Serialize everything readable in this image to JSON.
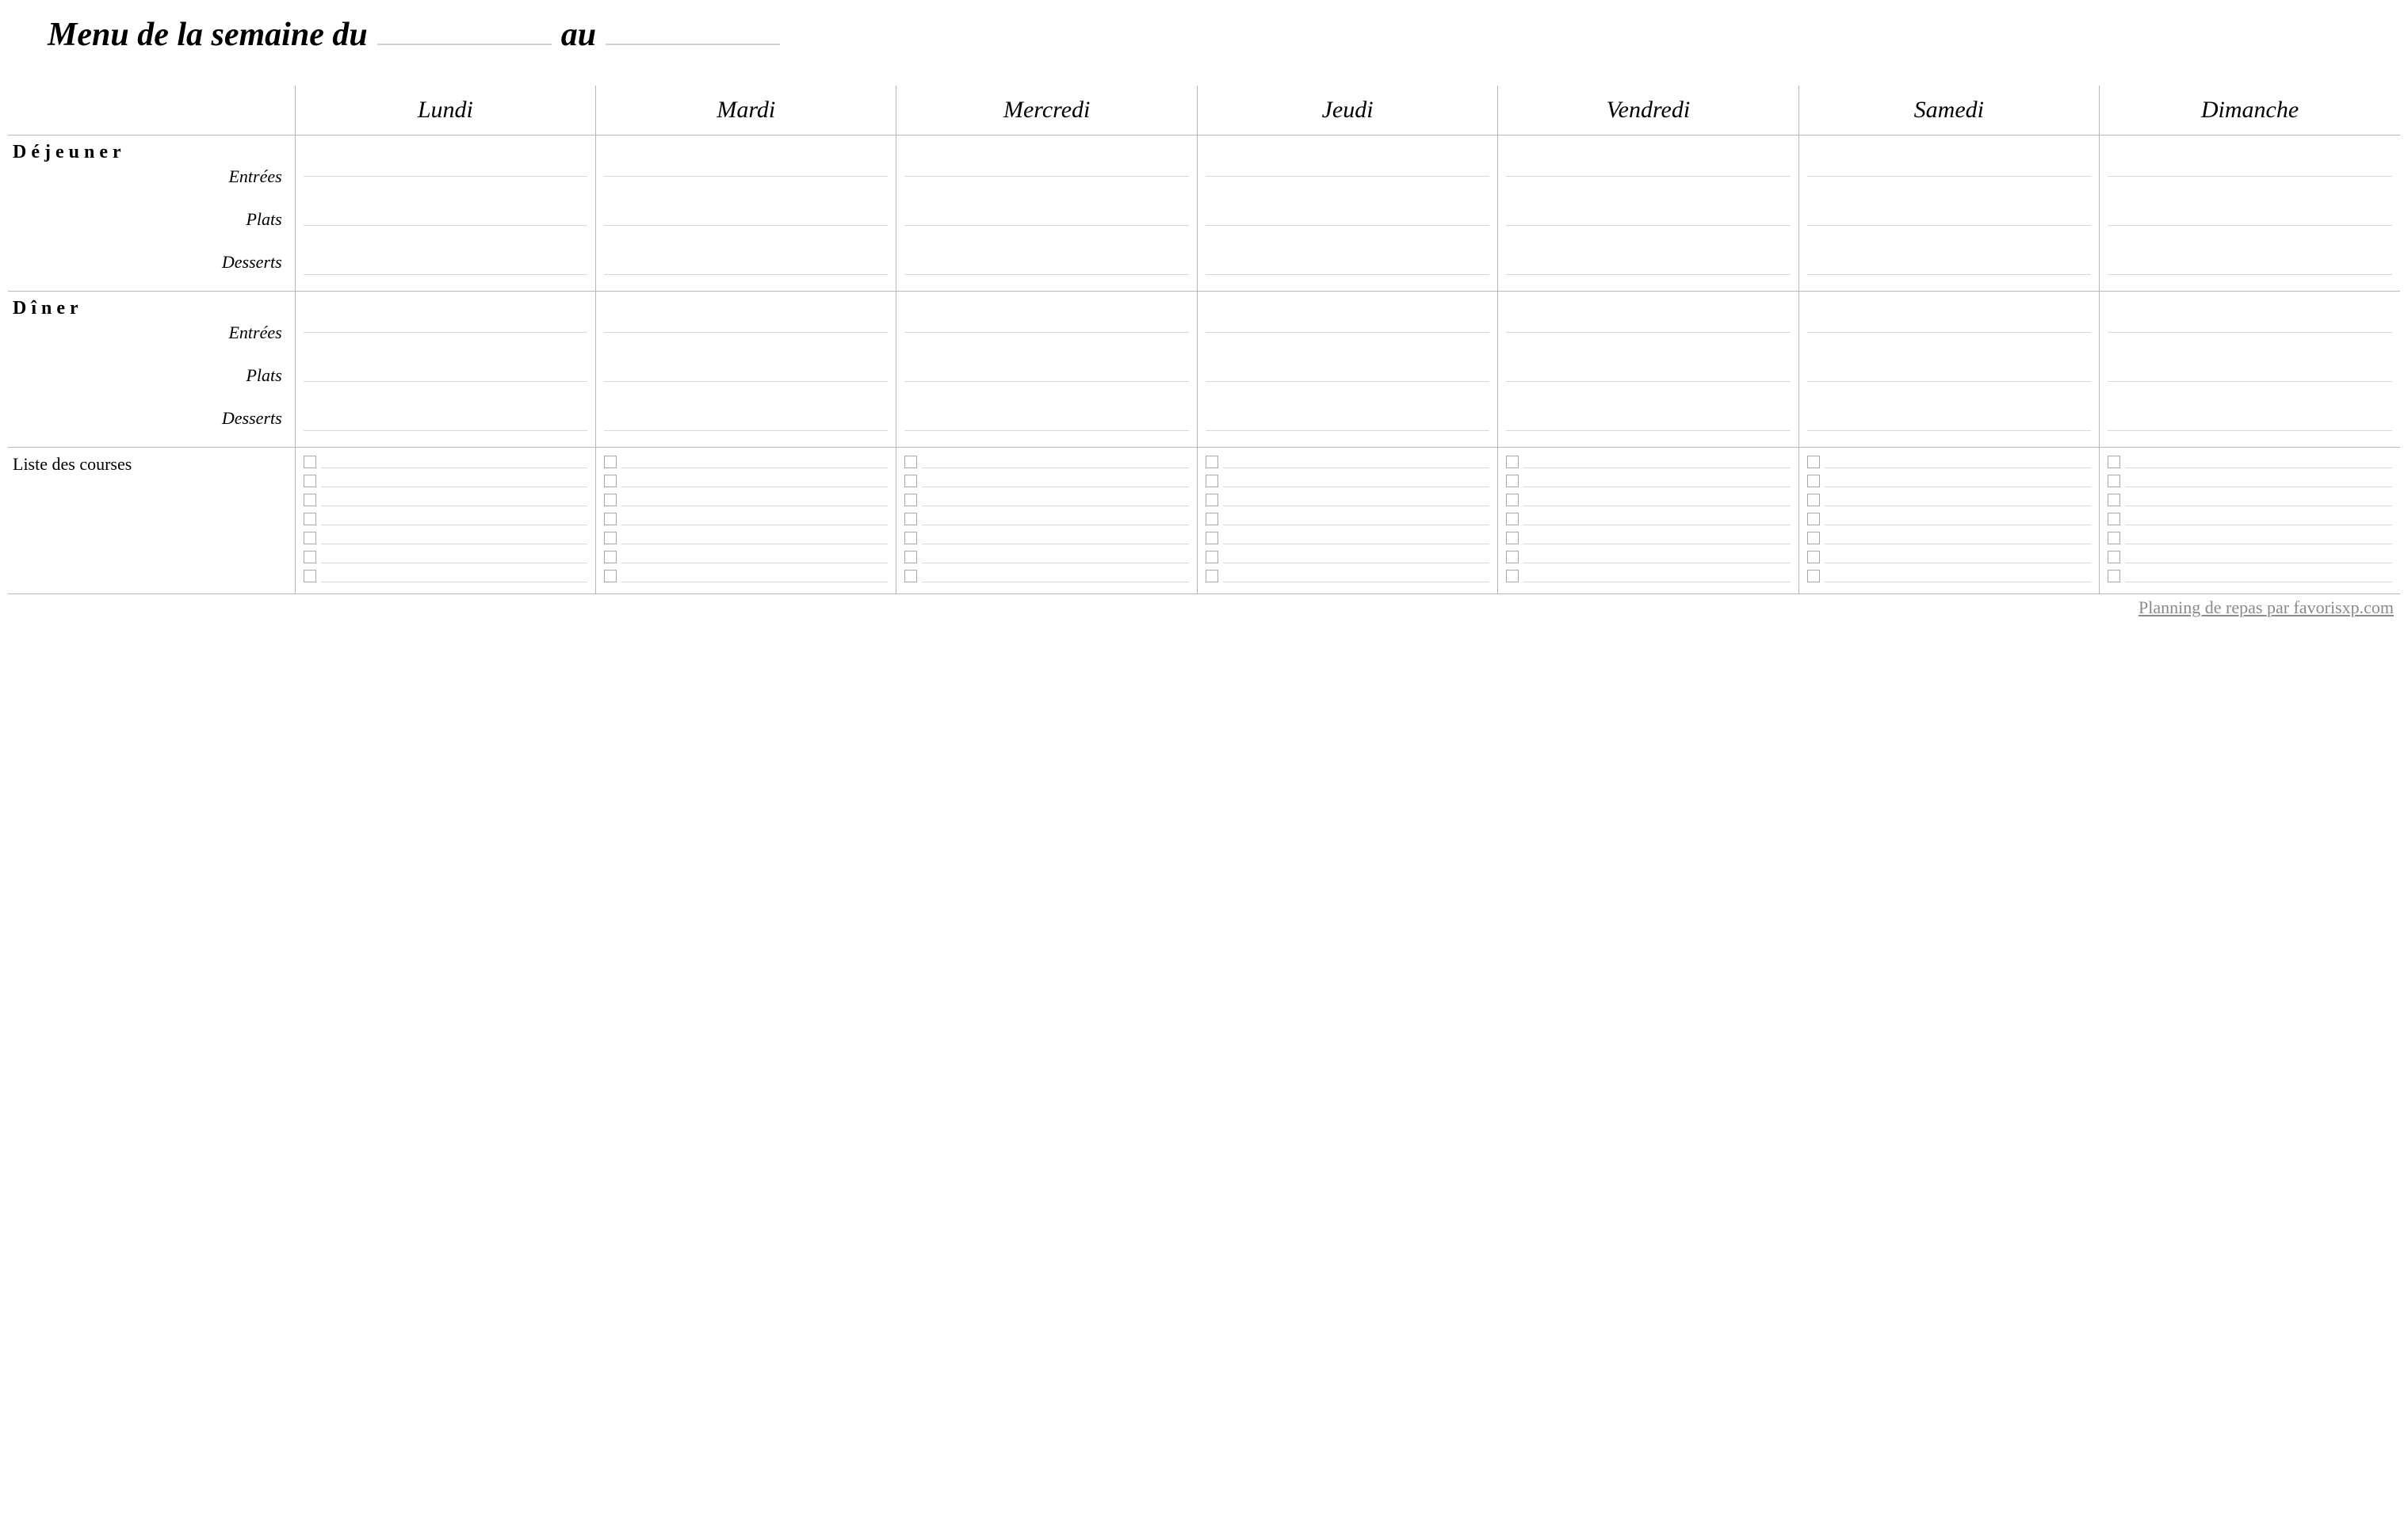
{
  "title": {
    "part1": "Menu de la semaine du",
    "part2": "au"
  },
  "days": [
    "Lundi",
    "Mardi",
    "Mercredi",
    "Jeudi",
    "Vendredi",
    "Samedi",
    "Dimanche"
  ],
  "meals": {
    "lunch": {
      "heading": "Déjeuner",
      "courses": [
        "Entrées",
        "Plats",
        "Desserts"
      ]
    },
    "dinner": {
      "heading": "Dîner",
      "courses": [
        "Entrées",
        "Plats",
        "Desserts"
      ]
    }
  },
  "shopping": {
    "heading": "Liste des courses",
    "rows_per_day": 7
  },
  "footer": "Planning de repas par favorisxp.com",
  "style": {
    "border_color": "#b8b8b8",
    "line_color": "#d8d8d8",
    "checkbox_border": "#a8a8a8",
    "footer_color": "#8a8a8a",
    "background": "#ffffff",
    "title_fontsize": 42,
    "day_header_fontsize": 30,
    "meal_title_fontsize": 24,
    "meal_sub_fontsize": 22,
    "footer_fontsize": 22
  }
}
